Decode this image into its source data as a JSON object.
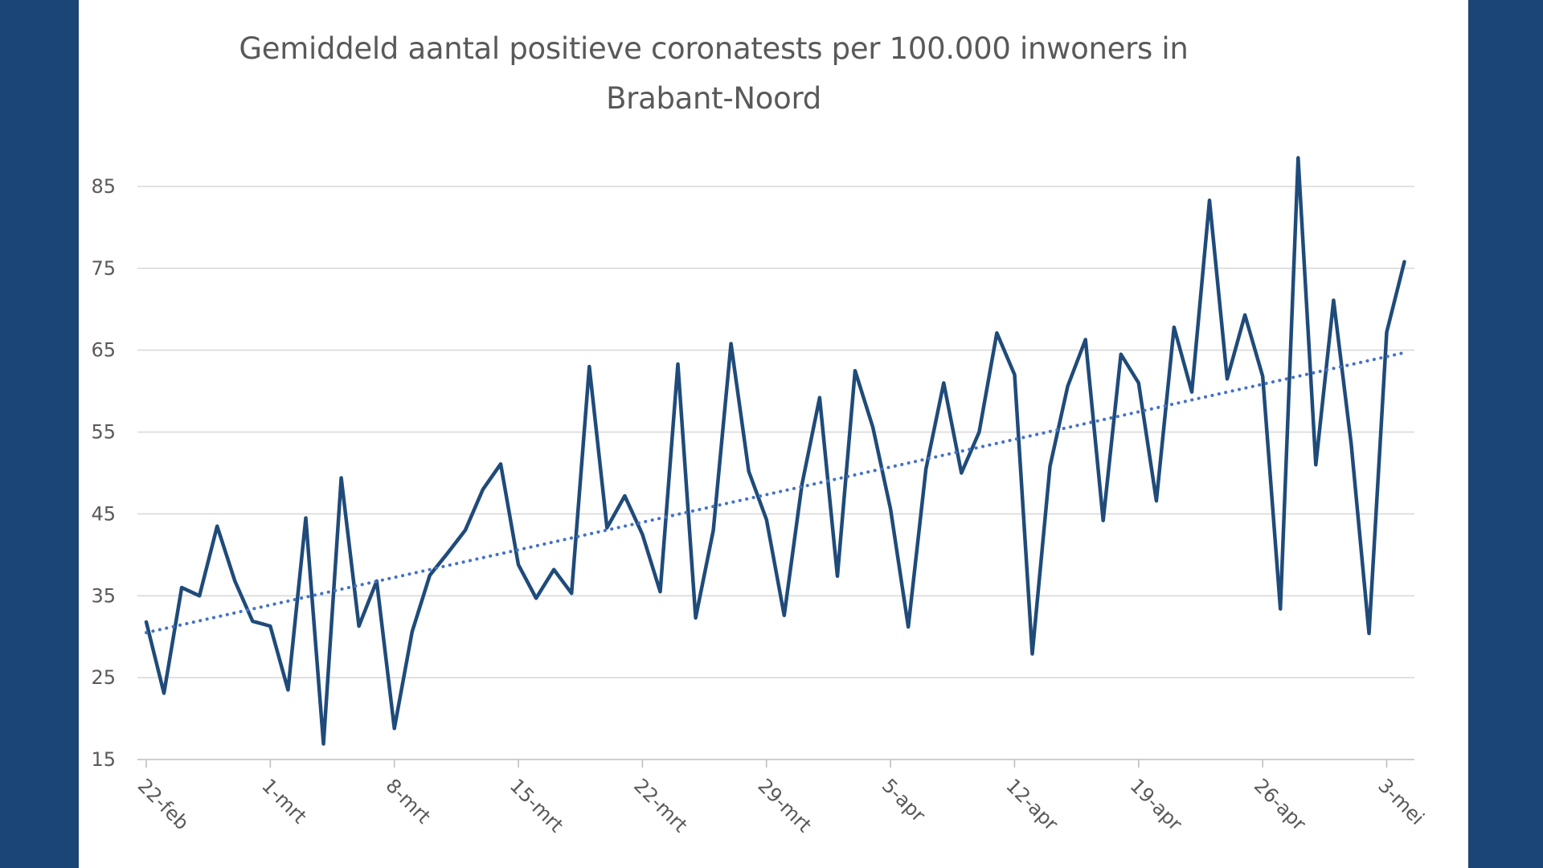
{
  "chart_data": {
    "type": "line",
    "title_lines": [
      "Gemiddeld aantal positieve coronatests per 100.000 inwoners in",
      "Brabant-Noord"
    ],
    "xlabel": "",
    "ylabel": "",
    "ylim": [
      15,
      90
    ],
    "yticks": [
      15,
      25,
      35,
      45,
      55,
      65,
      75,
      85
    ],
    "x_start": "22-feb",
    "x_tick_labels": [
      "22-feb",
      "1-mrt",
      "8-mrt",
      "15-mrt",
      "22-mrt",
      "29-mrt",
      "5-apr",
      "12-apr",
      "19-apr",
      "26-apr",
      "3-mei"
    ],
    "x_tick_step_days": 7,
    "grid": true,
    "legend": "none",
    "series": [
      {
        "style": "solid",
        "color": "#1f4b7a",
        "values": [
          31.8,
          23.1,
          36,
          35,
          43.5,
          36.8,
          31.9,
          31.3,
          23.5,
          44.5,
          16.9,
          49.4,
          31.3,
          36.8,
          18.8,
          30.6,
          37.5,
          40.2,
          43,
          48,
          51.1,
          38.8,
          34.7,
          38.2,
          35.3,
          63,
          43.3,
          47.2,
          42.5,
          35.5,
          63.3,
          32.3,
          43,
          65.8,
          50.2,
          44.3,
          32.6,
          48.6,
          59.2,
          37.4,
          62.5,
          55.6,
          45.6,
          31.2,
          50.5,
          61,
          50,
          55,
          67.1,
          62,
          27.9,
          50.8,
          60.6,
          66.3,
          44.2,
          64.5,
          61,
          46.6,
          67.8,
          59.9,
          83.3,
          61.5,
          69.3,
          61.8,
          33.4,
          88.5,
          51,
          71.1,
          53.5,
          30.4,
          67.2,
          75.8
        ]
      },
      {
        "style": "dotted",
        "color": "#4472c4",
        "values_start_end": [
          30.5,
          64.7
        ]
      }
    ]
  }
}
